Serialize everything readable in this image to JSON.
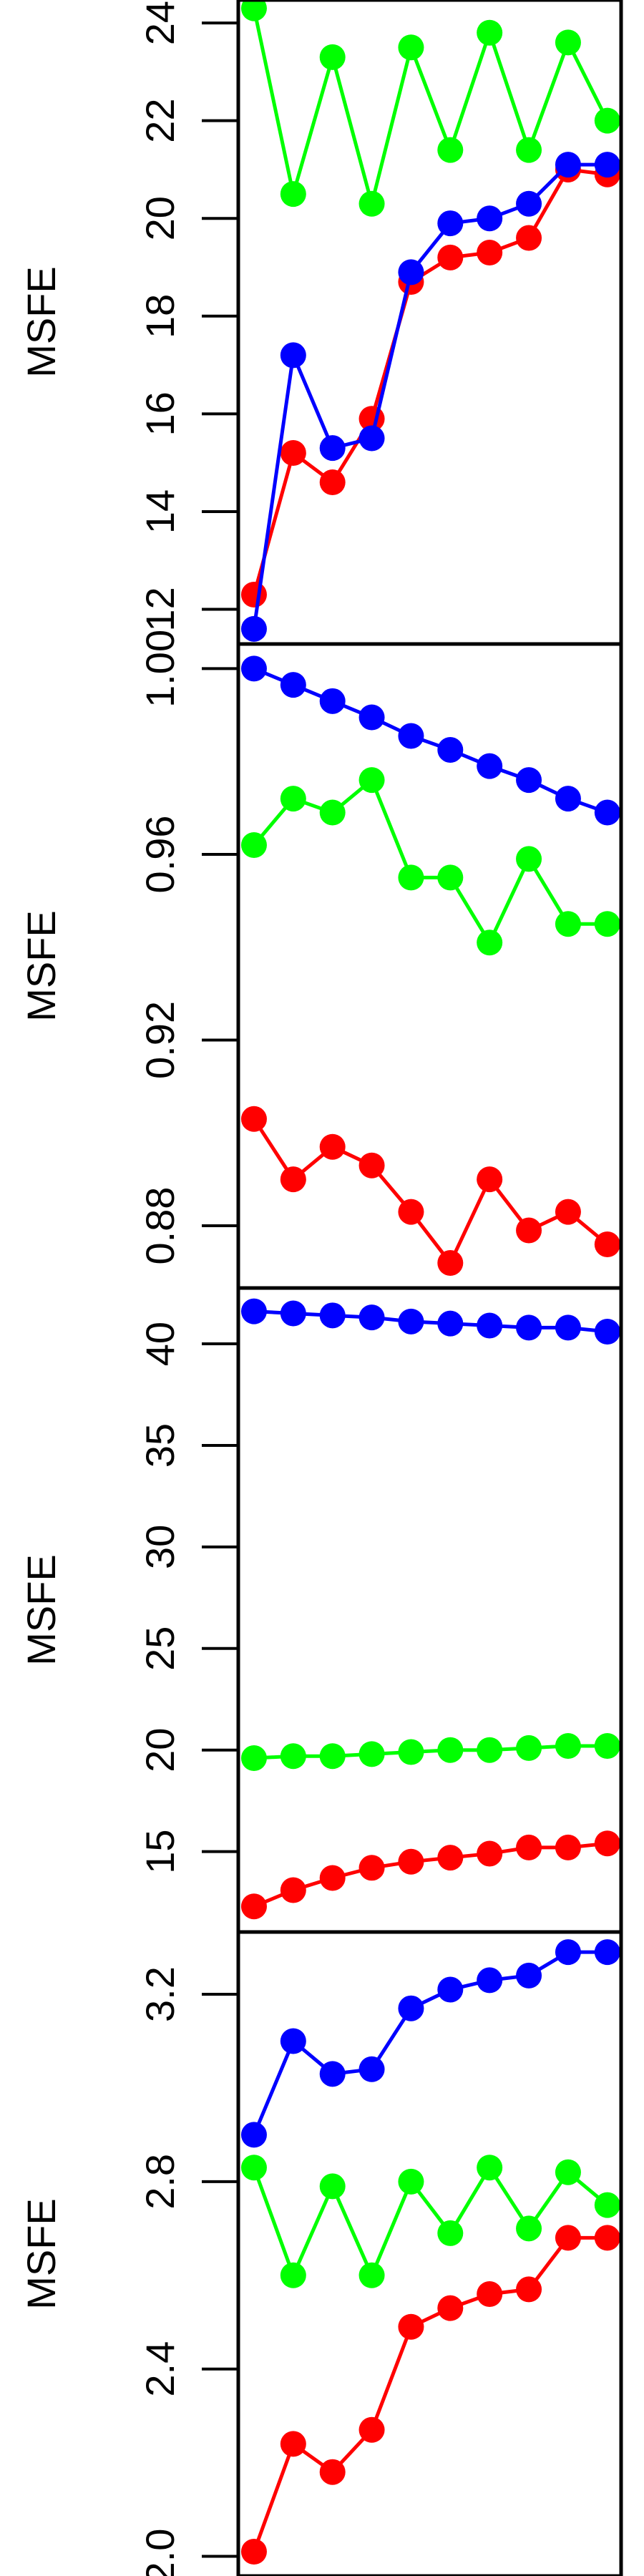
{
  "chart_data": [
    {
      "type": "line",
      "ylabel": "MSFE",
      "xlim": [
        0.6,
        10.35
      ],
      "ylim": [
        11.29,
        24.47
      ],
      "yticks": [
        12,
        14,
        16,
        18,
        20,
        22,
        24
      ],
      "x": [
        1,
        2,
        3,
        4,
        5,
        6,
        7,
        8,
        9,
        10
      ],
      "series": [
        {
          "color": "#ff0000",
          "values": [
            12.3,
            15.2,
            14.6,
            15.9,
            18.7,
            19.2,
            19.3,
            19.6,
            21.0,
            20.9
          ]
        },
        {
          "color": "#00ff00",
          "values": [
            24.3,
            20.5,
            23.3,
            20.3,
            23.5,
            21.4,
            23.8,
            21.4,
            23.6,
            22.0
          ]
        },
        {
          "color": "#0000ff",
          "values": [
            11.6,
            17.2,
            15.3,
            15.5,
            18.9,
            19.9,
            20.0,
            20.3,
            21.1,
            21.1
          ]
        }
      ]
    },
    {
      "type": "line",
      "ylabel": "MSFE",
      "xlim": [
        0.6,
        10.35
      ],
      "ylim": [
        0.8666,
        1.0053
      ],
      "yticks": [
        0.88,
        0.92,
        0.96,
        {
          "value": 1,
          "label": "1.00"
        }
      ],
      "x": [
        1,
        2,
        3,
        4,
        5,
        6,
        7,
        8,
        9,
        10
      ],
      "series": [
        {
          "color": "#ff0000",
          "values": [
            0.903,
            0.89,
            0.897,
            0.893,
            0.883,
            0.872,
            0.89,
            0.879,
            0.883,
            0.876
          ]
        },
        {
          "color": "#00ff00",
          "values": [
            0.962,
            0.972,
            0.969,
            0.976,
            0.955,
            0.955,
            0.941,
            0.959,
            0.945,
            0.945
          ]
        },
        {
          "color": "#0000ff",
          "values": [
            1.0,
            0.9965,
            0.993,
            0.9895,
            0.9855,
            0.9825,
            0.979,
            0.976,
            0.972,
            0.969
          ]
        }
      ]
    },
    {
      "type": "line",
      "ylabel": "MSFE",
      "xlim": [
        0.6,
        10.35
      ],
      "ylim": [
        11.04,
        42.75
      ],
      "yticks": [
        15,
        20,
        25,
        30,
        35,
        40
      ],
      "x": [
        1,
        2,
        3,
        4,
        5,
        6,
        7,
        8,
        9,
        10
      ],
      "series": [
        {
          "color": "#ff0000",
          "values": [
            12.3,
            13.1,
            13.7,
            14.2,
            14.5,
            14.7,
            14.9,
            15.2,
            15.2,
            15.4
          ]
        },
        {
          "color": "#00ff00",
          "values": [
            19.6,
            19.7,
            19.7,
            19.8,
            19.9,
            20.0,
            20.0,
            20.1,
            20.2,
            20.2
          ]
        },
        {
          "color": "#0000ff",
          "values": [
            41.6,
            41.5,
            41.4,
            41.3,
            41.1,
            41.0,
            40.9,
            40.8,
            40.8,
            40.6
          ]
        }
      ]
    },
    {
      "type": "line",
      "ylabel": "MSFE",
      "xlim": [
        0.6,
        10.35
      ],
      "ylim": [
        1.958,
        3.333
      ],
      "yticks": [
        {
          "value": 2,
          "label": "2.0"
        },
        2.4,
        2.8,
        3.2
      ],
      "x": [
        1,
        2,
        3,
        4,
        5,
        6,
        7,
        8,
        9,
        10
      ],
      "series": [
        {
          "color": "#ff0000",
          "values": [
            2.01,
            2.24,
            2.18,
            2.27,
            2.49,
            2.53,
            2.56,
            2.57,
            2.68,
            2.68
          ]
        },
        {
          "color": "#00ff00",
          "values": [
            2.83,
            2.6,
            2.79,
            2.6,
            2.8,
            2.69,
            2.83,
            2.7,
            2.82,
            2.75
          ]
        },
        {
          "color": "#0000ff",
          "values": [
            2.9,
            3.1,
            3.03,
            3.04,
            3.17,
            3.21,
            3.23,
            3.24,
            3.29,
            3.29
          ]
        }
      ]
    }
  ]
}
